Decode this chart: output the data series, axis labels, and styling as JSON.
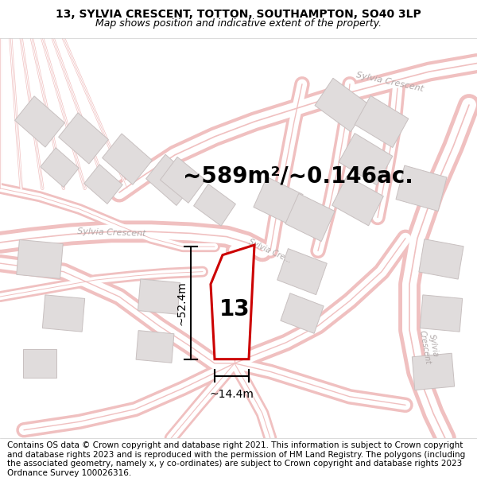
{
  "title": "13, SYLVIA CRESCENT, TOTTON, SOUTHAMPTON, SO40 3LP",
  "subtitle": "Map shows position and indicative extent of the property.",
  "footer": "Contains OS data © Crown copyright and database right 2021. This information is subject to Crown copyright and database rights 2023 and is reproduced with the permission of HM Land Registry. The polygons (including the associated geometry, namely x, y co-ordinates) are subject to Crown copyright and database rights 2023 Ordnance Survey 100026316.",
  "area_text": "~589m²/~0.146ac.",
  "dim_height": "~52.4m",
  "dim_width": "~14.4m",
  "label_number": "13",
  "bg_color": "#ffffff",
  "footer_bg": "#f0eeee",
  "road_color": "#f0c0c0",
  "road_fill": "#ffffff",
  "road_center_color": "#e8b0b0",
  "building_fill": "#e0dcdc",
  "building_edge": "#c8c0c0",
  "dim_color": "#000000",
  "title_fontsize": 10,
  "subtitle_fontsize": 9,
  "footer_fontsize": 7.5,
  "area_fontsize": 20,
  "dim_fontsize": 10,
  "label_fontsize": 20,
  "road_label_color": "#b0a8a8",
  "road_label_fontsize": 8
}
